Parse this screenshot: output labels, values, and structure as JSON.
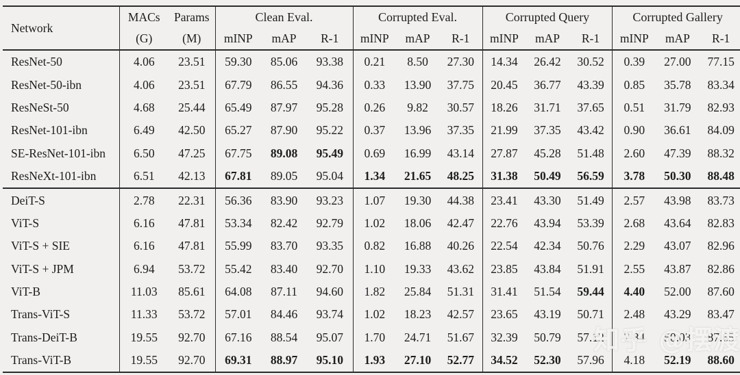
{
  "table": {
    "header": {
      "network": "Network",
      "macs": {
        "line1": "MACs",
        "line2": "(G)"
      },
      "params": {
        "line1": "Params",
        "line2": "(M)"
      },
      "groups": [
        "Clean Eval.",
        "Corrupted Eval.",
        "Corrupted Query",
        "Corrupted Gallery"
      ],
      "metrics": [
        "mINP",
        "mAP",
        "R-1"
      ]
    },
    "column_keys": [
      "MACs(G)",
      "Params(M)",
      "clean_mINP",
      "clean_mAP",
      "clean_R-1",
      "corrupted_mINP",
      "corrupted_mAP",
      "corrupted_R-1",
      "query_mINP",
      "query_mAP",
      "query_R-1",
      "gallery_mINP",
      "gallery_mAP",
      "gallery_R-1"
    ],
    "group1": [
      {
        "network": "ResNet-50",
        "cells": [
          "4.06",
          "23.51",
          "59.30",
          "85.06",
          "93.38",
          "0.21",
          "8.50",
          "27.30",
          "14.34",
          "26.42",
          "30.52",
          "0.39",
          "27.00",
          "77.15"
        ],
        "bold": []
      },
      {
        "network": "ResNet-50-ibn",
        "cells": [
          "4.06",
          "23.51",
          "67.79",
          "86.55",
          "94.36",
          "0.33",
          "13.90",
          "37.75",
          "20.45",
          "36.77",
          "43.39",
          "0.85",
          "35.78",
          "83.34"
        ],
        "bold": []
      },
      {
        "network": "ResNeSt-50",
        "cells": [
          "4.68",
          "25.44",
          "65.49",
          "87.97",
          "95.28",
          "0.26",
          "9.82",
          "30.57",
          "18.26",
          "31.71",
          "37.65",
          "0.51",
          "31.79",
          "82.93"
        ],
        "bold": []
      },
      {
        "network": "ResNet-101-ibn",
        "cells": [
          "6.49",
          "42.50",
          "65.27",
          "87.90",
          "95.22",
          "0.37",
          "13.96",
          "37.35",
          "21.99",
          "37.35",
          "43.42",
          "0.90",
          "36.61",
          "84.09"
        ],
        "bold": []
      },
      {
        "network": "SE-ResNet-101-ibn",
        "cells": [
          "6.50",
          "47.25",
          "67.75",
          "89.08",
          "95.49",
          "0.69",
          "16.99",
          "43.14",
          "27.87",
          "45.28",
          "51.48",
          "2.60",
          "47.39",
          "88.32"
        ],
        "bold": [
          3,
          4
        ]
      },
      {
        "network": "ResNeXt-101-ibn",
        "cells": [
          "6.51",
          "42.13",
          "67.81",
          "89.05",
          "95.04",
          "1.34",
          "21.65",
          "48.25",
          "31.38",
          "50.49",
          "56.59",
          "3.78",
          "50.30",
          "88.48"
        ],
        "bold": [
          2,
          5,
          6,
          7,
          8,
          9,
          10,
          11,
          12,
          13
        ]
      }
    ],
    "group2": [
      {
        "network": "DeiT-S",
        "cells": [
          "2.78",
          "22.31",
          "56.36",
          "83.90",
          "93.23",
          "1.07",
          "19.30",
          "44.38",
          "23.41",
          "43.30",
          "51.49",
          "2.57",
          "43.98",
          "83.73"
        ],
        "bold": []
      },
      {
        "network": "ViT-S",
        "cells": [
          "6.16",
          "47.81",
          "53.34",
          "82.42",
          "92.79",
          "1.02",
          "18.06",
          "42.47",
          "22.76",
          "43.94",
          "53.39",
          "2.68",
          "43.64",
          "82.83"
        ],
        "bold": []
      },
      {
        "network": "ViT-S + SIE",
        "cells": [
          "6.16",
          "47.81",
          "55.99",
          "83.70",
          "93.35",
          "0.82",
          "16.88",
          "40.26",
          "22.54",
          "42.34",
          "50.76",
          "2.29",
          "43.07",
          "82.96"
        ],
        "bold": []
      },
      {
        "network": "ViT-S + JPM",
        "cells": [
          "6.94",
          "53.72",
          "55.42",
          "83.40",
          "92.70",
          "1.10",
          "19.33",
          "43.62",
          "23.85",
          "43.84",
          "51.91",
          "2.55",
          "43.87",
          "82.86"
        ],
        "bold": []
      },
      {
        "network": "ViT-B",
        "cells": [
          "11.03",
          "85.61",
          "64.08",
          "87.11",
          "94.60",
          "1.82",
          "25.84",
          "51.31",
          "31.41",
          "51.54",
          "59.44",
          "4.40",
          "52.00",
          "87.60"
        ],
        "bold": [
          10,
          11
        ]
      },
      {
        "network": "Trans-ViT-S",
        "cells": [
          "11.33",
          "53.72",
          "57.01",
          "84.46",
          "93.74",
          "1.02",
          "18.23",
          "42.57",
          "23.65",
          "43.19",
          "50.71",
          "2.48",
          "43.29",
          "83.47"
        ],
        "bold": []
      },
      {
        "network": "Trans-DeiT-B",
        "cells": [
          "19.55",
          "92.70",
          "67.16",
          "88.54",
          "95.07",
          "1.70",
          "24.71",
          "51.67",
          "32.39",
          "50.79",
          "57.12",
          "2.84",
          "50.03",
          "87.65"
        ],
        "bold": []
      },
      {
        "network": "Trans-ViT-B",
        "cells": [
          "19.55",
          "92.70",
          "69.31",
          "88.97",
          "95.10",
          "1.93",
          "27.10",
          "52.77",
          "34.52",
          "52.30",
          "57.96",
          "4.18",
          "52.19",
          "88.60"
        ],
        "bold": [
          2,
          3,
          4,
          5,
          6,
          7,
          8,
          9,
          12,
          13
        ]
      }
    ]
  },
  "watermark": {
    "text": "知乎 @摆渡"
  },
  "colors": {
    "background": "#f1f0ee",
    "rule": "#2b2b2b",
    "text": "#1d1d1d",
    "watermark": "rgba(249,248,246,0.88)"
  }
}
